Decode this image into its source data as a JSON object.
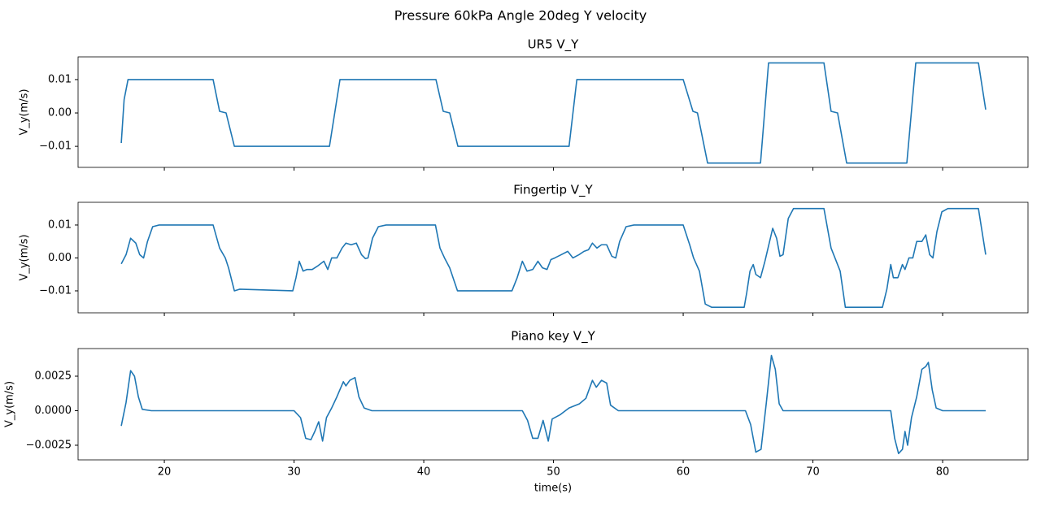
{
  "title": "Pressure 60kPa Angle 20deg Y velocity",
  "chart_data": [
    {
      "type": "line",
      "title": "UR5 V_Y",
      "ylabel": "V_y(m/s)",
      "xlim": [
        13.35,
        86.58
      ],
      "xticks": [
        20,
        30,
        40,
        50,
        60,
        70,
        80
      ],
      "xtick_labels": false,
      "ylim": [
        -0.0163,
        0.0168
      ],
      "yticks": [
        {
          "value": 0.01,
          "label": "0.01"
        },
        {
          "value": 0,
          "label": "0.00"
        },
        {
          "value": -0.01,
          "label": "−0.01"
        }
      ],
      "x": [
        16.68,
        16.9,
        17.2,
        23.76,
        24.26,
        24.76,
        25.4,
        32.73,
        33.54,
        40.94,
        41.5,
        42.0,
        42.63,
        51.2,
        51.8,
        60.0,
        60.75,
        61.1,
        61.88,
        65.96,
        66.58,
        70.85,
        71.4,
        71.9,
        72.6,
        77.24,
        77.93,
        82.76,
        83.32
      ],
      "series": [
        {
          "color": "#1f77b4",
          "values": [
            -0.009,
            0.004,
            0.01,
            0.01,
            0.0005,
            0.0,
            -0.01,
            -0.01,
            0.01,
            0.01,
            0.0005,
            0.0,
            -0.01,
            -0.01,
            0.01,
            0.01,
            0.0005,
            0.0,
            -0.015,
            -0.015,
            0.015,
            0.015,
            0.0005,
            0.0,
            -0.015,
            -0.015,
            0.015,
            0.015,
            0.001
          ]
        }
      ]
    },
    {
      "type": "line",
      "title": "Fingertip V_Y",
      "ylabel": "V_y(m/s)",
      "xlim": [
        13.35,
        86.58
      ],
      "xticks": [
        20,
        30,
        40,
        50,
        60,
        70,
        80
      ],
      "xtick_labels": false,
      "ylim": [
        -0.01667,
        0.0169
      ],
      "yticks": [
        {
          "value": 0.01,
          "label": "0.01"
        },
        {
          "value": 0,
          "label": "0.00"
        },
        {
          "value": -0.01,
          "label": "−0.01"
        }
      ],
      "x": [
        16.68,
        17.05,
        17.4,
        17.8,
        18.1,
        18.4,
        18.7,
        19.1,
        19.6,
        21.8,
        23.76,
        24.26,
        24.7,
        24.95,
        25.4,
        25.8,
        29.9,
        30.15,
        30.4,
        30.7,
        31.0,
        31.4,
        31.8,
        32.3,
        32.6,
        32.9,
        33.3,
        33.7,
        34.0,
        34.4,
        34.8,
        35.2,
        35.5,
        35.7,
        36.05,
        36.5,
        37.1,
        40.9,
        41.25,
        41.6,
        42.0,
        42.6,
        46.8,
        47.2,
        47.6,
        47.96,
        48.4,
        48.8,
        49.15,
        49.5,
        49.8,
        50.1,
        50.6,
        51.1,
        51.5,
        51.97,
        52.35,
        52.7,
        53.0,
        53.35,
        53.7,
        54.1,
        54.5,
        54.8,
        55.1,
        55.6,
        56.2,
        60.0,
        60.5,
        60.8,
        61.25,
        61.7,
        62.2,
        64.7,
        64.9,
        65.15,
        65.4,
        65.6,
        65.96,
        66.3,
        66.6,
        66.9,
        67.2,
        67.46,
        67.7,
        68.1,
        68.5,
        70.85,
        71.4,
        71.7,
        72.1,
        72.5,
        75.36,
        75.7,
        76.0,
        76.2,
        76.55,
        76.9,
        77.1,
        77.4,
        77.7,
        78.0,
        78.4,
        78.7,
        79.0,
        79.25,
        79.56,
        79.94,
        80.4,
        82.76,
        83.32
      ],
      "series": [
        {
          "color": "#1f77b4",
          "values": [
            -0.0018,
            0.001,
            0.006,
            0.0045,
            0.001,
            0.0,
            0.005,
            0.0095,
            0.01,
            0.01,
            0.01,
            0.003,
            0.0,
            -0.003,
            -0.01,
            -0.0095,
            -0.01,
            -0.006,
            -0.001,
            -0.004,
            -0.0035,
            -0.0035,
            -0.0025,
            -0.001,
            -0.0035,
            0.0,
            0.0,
            0.003,
            0.0045,
            0.004,
            0.0045,
            0.001,
            -0.0002,
            0.0,
            0.006,
            0.0095,
            0.01,
            0.01,
            0.003,
            0.0,
            -0.003,
            -0.01,
            -0.01,
            -0.006,
            -0.001,
            -0.004,
            -0.0035,
            -0.001,
            -0.003,
            -0.0035,
            -0.0005,
            0.0,
            0.001,
            0.002,
            0.0,
            0.001,
            0.002,
            0.0025,
            0.0045,
            0.003,
            0.004,
            0.004,
            0.0005,
            0.0,
            0.005,
            0.0095,
            0.01,
            0.01,
            0.004,
            0.0,
            -0.004,
            -0.014,
            -0.015,
            -0.015,
            -0.0105,
            -0.004,
            -0.002,
            -0.005,
            -0.006,
            -0.001,
            0.004,
            0.009,
            0.006,
            0.0005,
            0.001,
            0.012,
            0.015,
            0.015,
            0.003,
            0.0,
            -0.004,
            -0.015,
            -0.015,
            -0.0095,
            -0.002,
            -0.006,
            -0.006,
            -0.002,
            -0.0035,
            0.0,
            0.0,
            0.005,
            0.005,
            0.007,
            0.001,
            0.0,
            0.008,
            0.014,
            0.015,
            0.015,
            0.001
          ]
        }
      ]
    },
    {
      "type": "line",
      "title": "Piano key V_Y",
      "ylabel": "V_y(m/s)",
      "xlabel": "time(s)",
      "xlim": [
        13.35,
        86.58
      ],
      "xticks": [
        20,
        30,
        40,
        50,
        60,
        70,
        80
      ],
      "xtick_labels": true,
      "ylim": [
        -0.00356,
        0.0045
      ],
      "yticks": [
        {
          "value": 0.0025,
          "label": "0.0025"
        },
        {
          "value": 0,
          "label": "0.0000"
        },
        {
          "value": -0.0025,
          "label": "−0.0025"
        }
      ],
      "x": [
        16.68,
        17.05,
        17.4,
        17.7,
        18.0,
        18.3,
        19.0,
        30.0,
        30.5,
        30.9,
        31.3,
        31.6,
        31.9,
        32.2,
        32.5,
        32.9,
        33.3,
        33.8,
        34.0,
        34.3,
        34.7,
        35.0,
        35.4,
        36.0,
        47.6,
        48.0,
        48.4,
        48.8,
        49.2,
        49.6,
        49.9,
        50.5,
        51.2,
        52.0,
        52.5,
        53.0,
        53.3,
        53.7,
        54.1,
        54.4,
        55.0,
        64.8,
        65.2,
        65.6,
        66.0,
        66.4,
        66.8,
        67.1,
        67.4,
        67.7,
        76.0,
        76.3,
        76.6,
        76.9,
        77.1,
        77.3,
        77.6,
        78.0,
        78.4,
        78.7,
        78.9,
        79.2,
        79.5,
        80.0,
        83.32
      ],
      "series": [
        {
          "color": "#1f77b4",
          "values": [
            -0.0011,
            0.0006,
            0.0029,
            0.0025,
            0.001,
            0.0001,
            0.0,
            0.0,
            -0.0005,
            -0.002,
            -0.0021,
            -0.0015,
            -0.0008,
            -0.0022,
            -0.0005,
            0.0002,
            0.001,
            0.0021,
            0.0018,
            0.0022,
            0.0024,
            0.001,
            0.0002,
            0.0,
            0.0,
            -0.0007,
            -0.002,
            -0.002,
            -0.0007,
            -0.0022,
            -0.0006,
            -0.0003,
            0.0002,
            0.0005,
            0.0009,
            0.0022,
            0.0017,
            0.0022,
            0.002,
            0.0004,
            0.0,
            0.0,
            -0.001,
            -0.003,
            -0.0028,
            0.0005,
            0.004,
            0.003,
            0.0005,
            0.0,
            0.0,
            -0.002,
            -0.0031,
            -0.0028,
            -0.0015,
            -0.0025,
            -0.0005,
            0.001,
            0.003,
            0.0032,
            0.0035,
            0.0015,
            0.0002,
            0.0,
            0.0
          ]
        }
      ]
    }
  ]
}
